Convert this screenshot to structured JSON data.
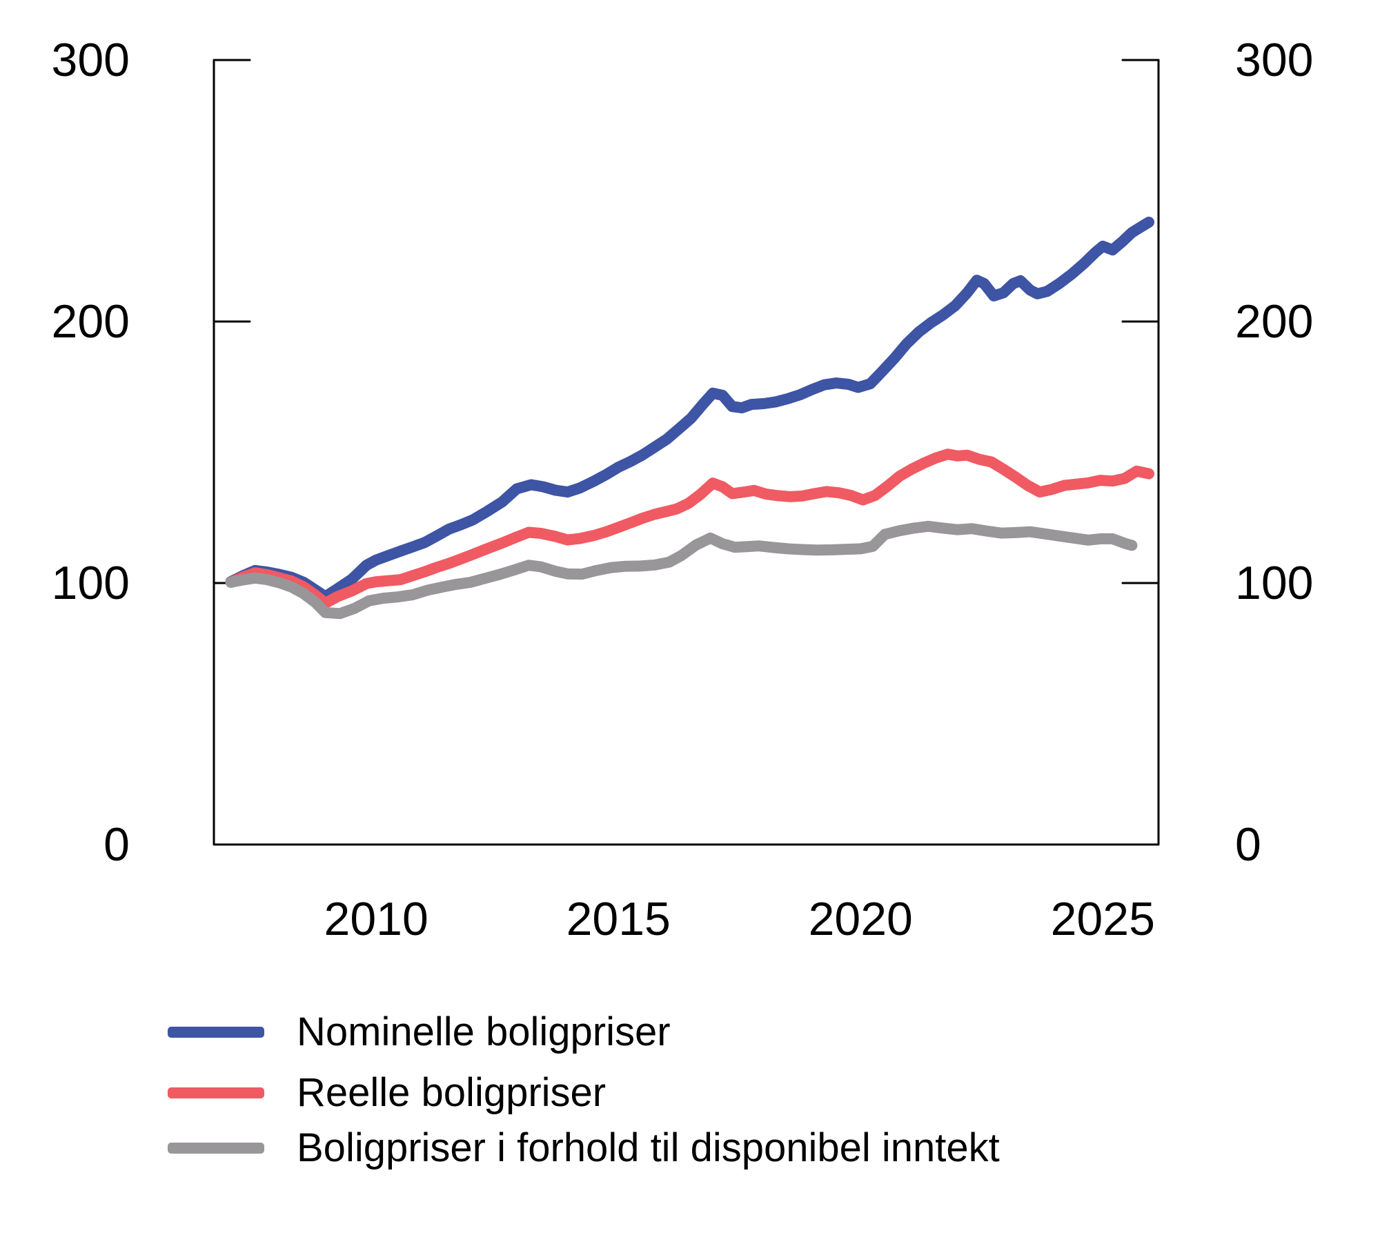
{
  "figure": {
    "background": "#ffffff",
    "text_color": "#000000",
    "axis_color": "#000000"
  },
  "chart_data": {
    "type": "line",
    "title": "",
    "xlabel": "",
    "ylabel": "",
    "x_range": [
      2006.65,
      2026.15
    ],
    "y_range": [
      0,
      300
    ],
    "y_ticks": [
      0,
      100,
      200,
      300
    ],
    "y_tick_labels": [
      "0",
      "100",
      "200",
      "300"
    ],
    "y_axis_sides": [
      "left",
      "right"
    ],
    "x_ticks": [
      2010,
      2015,
      2020,
      2025
    ],
    "x_tick_labels": [
      "2010",
      "2015",
      "2020",
      "2025"
    ],
    "grid": false,
    "legend_position": "bottom-left",
    "series": [
      {
        "name": "Nominelle boligpriser",
        "color": "#3E54A4",
        "points": [
          [
            2007.0,
            100.5
          ],
          [
            2007.25,
            102.8
          ],
          [
            2007.5,
            104.8
          ],
          [
            2007.75,
            104.2
          ],
          [
            2008.0,
            103.3
          ],
          [
            2008.25,
            102.2
          ],
          [
            2008.5,
            100.3
          ],
          [
            2008.75,
            97.3
          ],
          [
            2008.95,
            94.8
          ],
          [
            2009.2,
            97.8
          ],
          [
            2009.5,
            101.5
          ],
          [
            2009.8,
            106.8
          ],
          [
            2010.0,
            108.8
          ],
          [
            2010.25,
            110.5
          ],
          [
            2010.5,
            112.2
          ],
          [
            2010.75,
            113.8
          ],
          [
            2011.0,
            115.5
          ],
          [
            2011.25,
            118
          ],
          [
            2011.5,
            120.6
          ],
          [
            2011.75,
            122.3
          ],
          [
            2012.0,
            124.2
          ],
          [
            2012.3,
            127.5
          ],
          [
            2012.6,
            131
          ],
          [
            2012.9,
            136
          ],
          [
            2013.2,
            137.6
          ],
          [
            2013.45,
            136.8
          ],
          [
            2013.7,
            135.5
          ],
          [
            2013.95,
            134.8
          ],
          [
            2014.2,
            136.3
          ],
          [
            2014.5,
            139
          ],
          [
            2014.75,
            141.5
          ],
          [
            2015.0,
            144.3
          ],
          [
            2015.25,
            146.5
          ],
          [
            2015.5,
            149
          ],
          [
            2015.75,
            152
          ],
          [
            2016.0,
            155
          ],
          [
            2016.25,
            159
          ],
          [
            2016.5,
            163
          ],
          [
            2016.75,
            168.5
          ],
          [
            2016.95,
            172.6
          ],
          [
            2017.15,
            171.8
          ],
          [
            2017.35,
            167.5
          ],
          [
            2017.55,
            167
          ],
          [
            2017.75,
            168.3
          ],
          [
            2018.0,
            168.6
          ],
          [
            2018.25,
            169.3
          ],
          [
            2018.5,
            170.5
          ],
          [
            2018.75,
            172
          ],
          [
            2019.0,
            174
          ],
          [
            2019.25,
            175.8
          ],
          [
            2019.5,
            176.5
          ],
          [
            2019.75,
            176
          ],
          [
            2019.95,
            174.8
          ],
          [
            2020.2,
            176.2
          ],
          [
            2020.45,
            181
          ],
          [
            2020.7,
            186
          ],
          [
            2020.95,
            191.5
          ],
          [
            2021.2,
            196
          ],
          [
            2021.45,
            199.5
          ],
          [
            2021.7,
            202.5
          ],
          [
            2021.95,
            206
          ],
          [
            2022.2,
            211
          ],
          [
            2022.4,
            215.8
          ],
          [
            2022.55,
            214.5
          ],
          [
            2022.75,
            209.8
          ],
          [
            2022.95,
            211
          ],
          [
            2023.15,
            214.5
          ],
          [
            2023.3,
            215.6
          ],
          [
            2023.5,
            212
          ],
          [
            2023.65,
            210.6
          ],
          [
            2023.85,
            211.5
          ],
          [
            2024.1,
            214.5
          ],
          [
            2024.35,
            218
          ],
          [
            2024.6,
            222
          ],
          [
            2024.85,
            226.5
          ],
          [
            2025.0,
            228.8
          ],
          [
            2025.2,
            227.4
          ],
          [
            2025.4,
            230.5
          ],
          [
            2025.6,
            234
          ],
          [
            2025.8,
            236.3
          ],
          [
            2025.95,
            238
          ]
        ]
      },
      {
        "name": "Reelle boligpriser",
        "color": "#F05A63",
        "points": [
          [
            2007.0,
            100.3
          ],
          [
            2007.25,
            102.3
          ],
          [
            2007.5,
            103.9
          ],
          [
            2007.75,
            103.2
          ],
          [
            2008.0,
            102
          ],
          [
            2008.25,
            100.8
          ],
          [
            2008.5,
            98.6
          ],
          [
            2008.75,
            95.3
          ],
          [
            2008.95,
            92.3
          ],
          [
            2009.2,
            94.8
          ],
          [
            2009.5,
            97
          ],
          [
            2009.8,
            99.8
          ],
          [
            2010.0,
            100.5
          ],
          [
            2010.25,
            100.9
          ],
          [
            2010.5,
            101.3
          ],
          [
            2010.75,
            102.8
          ],
          [
            2011.0,
            104.3
          ],
          [
            2011.25,
            106
          ],
          [
            2011.5,
            107.5
          ],
          [
            2011.75,
            109.2
          ],
          [
            2012.0,
            111
          ],
          [
            2012.3,
            113.2
          ],
          [
            2012.6,
            115.3
          ],
          [
            2012.9,
            117.6
          ],
          [
            2013.15,
            119.4
          ],
          [
            2013.4,
            119
          ],
          [
            2013.7,
            117.8
          ],
          [
            2013.95,
            116.5
          ],
          [
            2014.2,
            117
          ],
          [
            2014.5,
            118.2
          ],
          [
            2014.75,
            119.6
          ],
          [
            2015.0,
            121.3
          ],
          [
            2015.25,
            123
          ],
          [
            2015.5,
            124.8
          ],
          [
            2015.75,
            126.3
          ],
          [
            2016.0,
            127.4
          ],
          [
            2016.2,
            128.3
          ],
          [
            2016.45,
            130.5
          ],
          [
            2016.7,
            134
          ],
          [
            2016.95,
            138.2
          ],
          [
            2017.15,
            136.8
          ],
          [
            2017.35,
            134.2
          ],
          [
            2017.6,
            134.8
          ],
          [
            2017.8,
            135.4
          ],
          [
            2018.05,
            134
          ],
          [
            2018.3,
            133.4
          ],
          [
            2018.55,
            133
          ],
          [
            2018.8,
            133.3
          ],
          [
            2019.05,
            134.2
          ],
          [
            2019.3,
            135
          ],
          [
            2019.55,
            134.5
          ],
          [
            2019.8,
            133.5
          ],
          [
            2020.05,
            131.8
          ],
          [
            2020.3,
            133.5
          ],
          [
            2020.55,
            137
          ],
          [
            2020.8,
            140.8
          ],
          [
            2021.05,
            143.5
          ],
          [
            2021.3,
            145.8
          ],
          [
            2021.55,
            147.8
          ],
          [
            2021.8,
            149.3
          ],
          [
            2022.0,
            148.6
          ],
          [
            2022.2,
            148.9
          ],
          [
            2022.45,
            147.3
          ],
          [
            2022.7,
            146.3
          ],
          [
            2022.95,
            143.5
          ],
          [
            2023.2,
            140.5
          ],
          [
            2023.45,
            137.3
          ],
          [
            2023.7,
            134.8
          ],
          [
            2023.95,
            135.8
          ],
          [
            2024.2,
            137.3
          ],
          [
            2024.45,
            137.8
          ],
          [
            2024.7,
            138.3
          ],
          [
            2024.95,
            139.3
          ],
          [
            2025.2,
            139
          ],
          [
            2025.45,
            140
          ],
          [
            2025.7,
            142.8
          ],
          [
            2025.95,
            141.8
          ]
        ]
      },
      {
        "name": "Boligpriser i forhold til disponibel inntekt",
        "color": "#99969A",
        "points": [
          [
            2007.0,
            100.3
          ],
          [
            2007.25,
            101.2
          ],
          [
            2007.5,
            101.9
          ],
          [
            2007.75,
            101.3
          ],
          [
            2008.0,
            100.1
          ],
          [
            2008.25,
            98.5
          ],
          [
            2008.5,
            96
          ],
          [
            2008.75,
            92.5
          ],
          [
            2008.95,
            88.7
          ],
          [
            2009.25,
            88.3
          ],
          [
            2009.55,
            90.3
          ],
          [
            2009.85,
            93.2
          ],
          [
            2010.15,
            94.2
          ],
          [
            2010.45,
            94.7
          ],
          [
            2010.75,
            95.5
          ],
          [
            2011.05,
            97.2
          ],
          [
            2011.35,
            98.4
          ],
          [
            2011.65,
            99.5
          ],
          [
            2011.95,
            100.3
          ],
          [
            2012.25,
            101.8
          ],
          [
            2012.55,
            103.3
          ],
          [
            2012.85,
            105
          ],
          [
            2013.15,
            106.8
          ],
          [
            2013.4,
            106.2
          ],
          [
            2013.7,
            104.5
          ],
          [
            2013.95,
            103.5
          ],
          [
            2014.25,
            103.4
          ],
          [
            2014.55,
            104.8
          ],
          [
            2014.85,
            105.9
          ],
          [
            2015.15,
            106.4
          ],
          [
            2015.45,
            106.5
          ],
          [
            2015.75,
            106.9
          ],
          [
            2016.05,
            108
          ],
          [
            2016.3,
            110.5
          ],
          [
            2016.6,
            114.5
          ],
          [
            2016.9,
            117.2
          ],
          [
            2017.15,
            115
          ],
          [
            2017.4,
            113.7
          ],
          [
            2017.65,
            113.9
          ],
          [
            2017.9,
            114.2
          ],
          [
            2018.2,
            113.6
          ],
          [
            2018.5,
            113.1
          ],
          [
            2018.8,
            112.8
          ],
          [
            2019.1,
            112.6
          ],
          [
            2019.4,
            112.7
          ],
          [
            2019.7,
            112.9
          ],
          [
            2020.0,
            113.1
          ],
          [
            2020.25,
            114
          ],
          [
            2020.5,
            118.6
          ],
          [
            2020.8,
            120
          ],
          [
            2021.1,
            121
          ],
          [
            2021.4,
            121.7
          ],
          [
            2021.7,
            121
          ],
          [
            2022.0,
            120.4
          ],
          [
            2022.3,
            120.8
          ],
          [
            2022.6,
            119.9
          ],
          [
            2022.9,
            119.1
          ],
          [
            2023.2,
            119.3
          ],
          [
            2023.5,
            119.6
          ],
          [
            2023.8,
            118.8
          ],
          [
            2024.1,
            118
          ],
          [
            2024.4,
            117.2
          ],
          [
            2024.7,
            116.4
          ],
          [
            2024.95,
            116.9
          ],
          [
            2025.2,
            116.9
          ],
          [
            2025.45,
            115.2
          ],
          [
            2025.6,
            114.4
          ]
        ]
      }
    ]
  }
}
